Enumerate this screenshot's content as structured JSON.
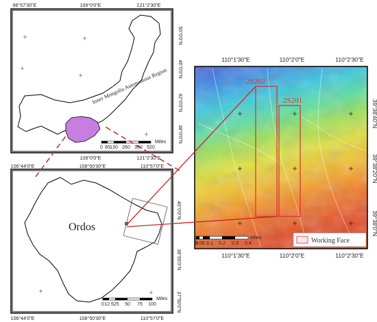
{
  "colors": {
    "highlight": "#c77ee0",
    "connector": "#c62828",
    "inner_mongolia_label": "#222222",
    "face_outline": "#d32f2f"
  },
  "map1": {
    "top_labels": [
      "96°57'30\"E",
      "109°0'0\"E",
      "121°2'30\"E"
    ],
    "bottom_labels": [
      "109°0'0\"E",
      "121°2'30\"E"
    ],
    "right_labels": [
      "50°0'0\"N",
      "46°0'0\"N",
      "42°0'0\"N",
      "38°0'0\"N"
    ],
    "region_label": "Inner Mongolia Autonomous Region",
    "scale_ticks": [
      "0",
      "65",
      "130",
      "260",
      "390",
      "520"
    ],
    "scale_unit": "Miles"
  },
  "map2": {
    "top_labels": [
      "106°44'0\"E",
      "108°50'30\"E",
      "110°57'0\"E"
    ],
    "bottom_labels": [
      "106°44'0\"E",
      "108°50'30\"E",
      "110°57'0\"E"
    ],
    "right_labels": [
      "40°0'0\"N",
      "38°55'0\"N",
      "37°50'0\"N"
    ],
    "region_label": "Ordos",
    "scale_ticks": [
      "0",
      "12.525",
      "50",
      "75",
      "100"
    ],
    "scale_unit": "Miles"
  },
  "map3": {
    "top_labels": [
      "110°1'30\"E",
      "110°2'0\"E",
      "110°2'30\"E"
    ],
    "bottom_labels": [
      "110°1'30\"E",
      "110°2'0\"E",
      "110°2'30\"E"
    ],
    "right_labels": [
      "39°38'40\"N",
      "39°38'20\"N",
      "39°38'0\"N"
    ],
    "panel_labels": [
      "2S202",
      "2S201"
    ],
    "scale_ticks": [
      "0",
      "0.05",
      "0.1",
      "0.2",
      "0.3",
      "0.4"
    ],
    "scale_unit": "Miles",
    "legend_label": "Working Face"
  }
}
